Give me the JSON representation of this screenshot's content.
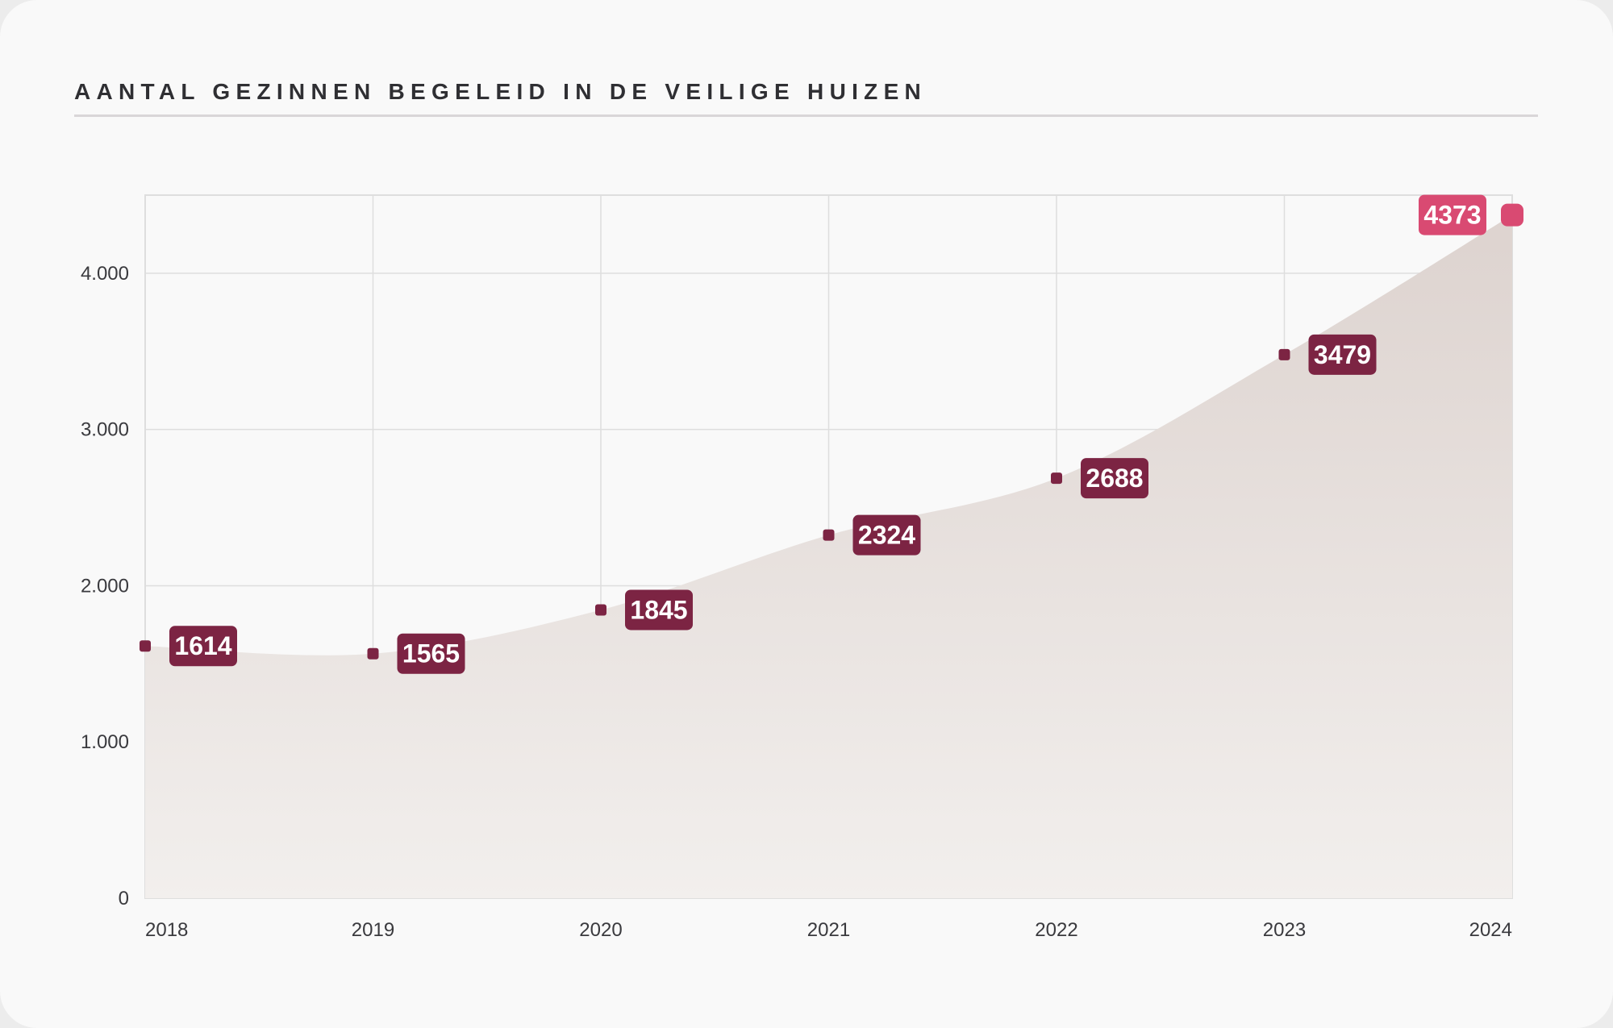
{
  "header": {
    "title": "AANTAL GEZINNEN BEGELEID IN DE VEILIGE HUIZEN"
  },
  "colors": {
    "marker": "#7c2443",
    "highlight": "#d94a72",
    "area_top": "#ddd3cf",
    "area_bottom": "#f2efed",
    "grid": "#dedede"
  },
  "chart_data": {
    "type": "area",
    "title": "AANTAL GEZINNEN BEGELEID IN DE VEILIGE HUIZEN",
    "xlabel": "",
    "ylabel": "",
    "x": [
      "2018",
      "2019",
      "2020",
      "2021",
      "2022",
      "2023",
      "2024"
    ],
    "values": [
      1614,
      1565,
      1845,
      2324,
      2688,
      3479,
      4373
    ],
    "value_labels": [
      "1614",
      "1565",
      "1845",
      "2324",
      "2688",
      "3479",
      "4373"
    ],
    "ylim": [
      0,
      4500
    ],
    "yticks": [
      0,
      1000,
      2000,
      3000,
      4000
    ],
    "ytick_labels": [
      "0",
      "1.000",
      "2.000",
      "3.000",
      "4.000"
    ],
    "highlight_index": 6,
    "grid": true,
    "legend": "none"
  }
}
